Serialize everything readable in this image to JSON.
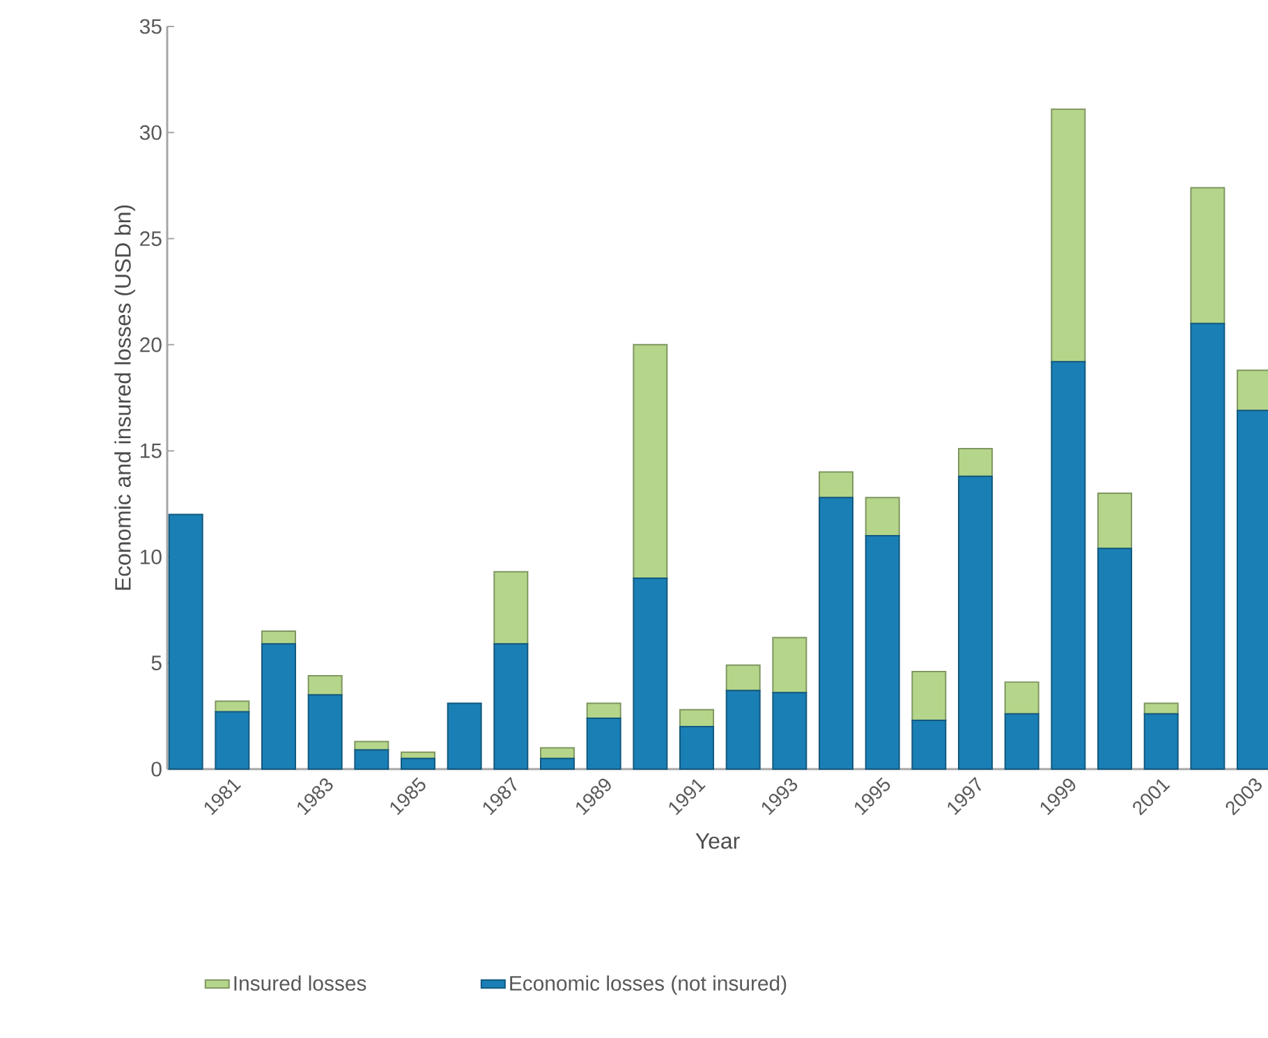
{
  "chart_data": {
    "type": "bar",
    "stacked": true,
    "xlabel": "Year",
    "ylabel": "Economic and insured losses (USD bn)",
    "categories": [
      null,
      "1981",
      null,
      "1983",
      null,
      "1985",
      null,
      "1987",
      null,
      "1989",
      null,
      "1991",
      null,
      "1993",
      null,
      "1995",
      null,
      "1997",
      null,
      "1999",
      null,
      "2001",
      null,
      "2003"
    ],
    "series": [
      {
        "name": "Economic losses (not insured)",
        "color": "#1a7fb5",
        "values": [
          12,
          2.7,
          5.9,
          3.5,
          0.9,
          0.5,
          3.1,
          5.9,
          0.5,
          2.4,
          9.0,
          2.0,
          3.7,
          3.6,
          12.8,
          11.0,
          2.3,
          13.8,
          2.6,
          19.2,
          10.4,
          2.6,
          21.0,
          16.9
        ]
      },
      {
        "name": "Insured losses",
        "color": "#b5d68a",
        "values": [
          0,
          0.5,
          0.6,
          0.9,
          0.4,
          0.3,
          0,
          3.4,
          0.5,
          0.7,
          11.0,
          0.8,
          1.2,
          2.6,
          1.2,
          1.8,
          2.3,
          1.3,
          1.5,
          11.9,
          2.6,
          0.5,
          6.4,
          1.9
        ]
      }
    ],
    "ylim": [
      0,
      35
    ],
    "yticks": [
      0,
      5,
      10,
      15,
      20,
      25,
      30,
      35
    ],
    "legend": "bottom"
  }
}
